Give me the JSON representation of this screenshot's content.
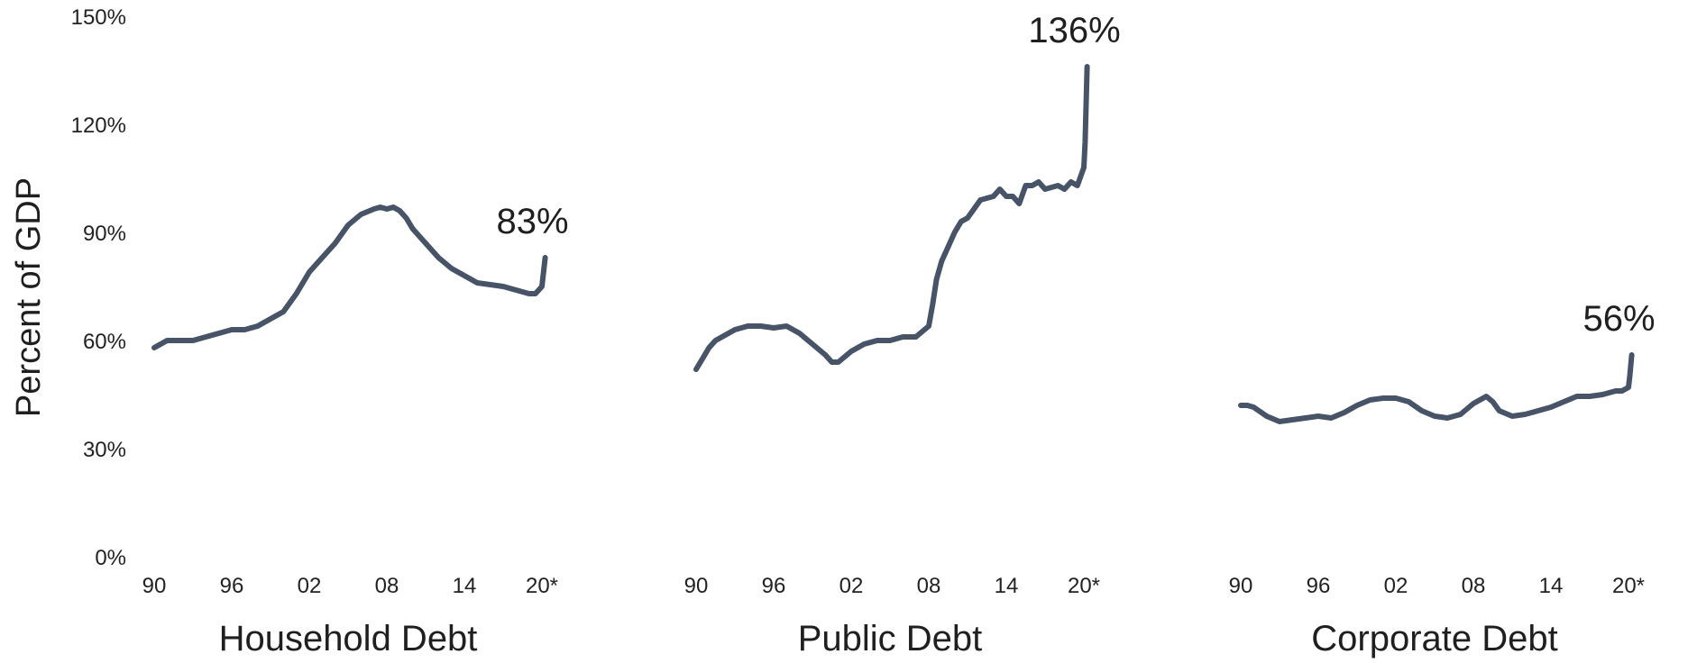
{
  "colors": {
    "line": "#475467",
    "text": "#1f1f1f",
    "background": "#ffffff"
  },
  "chart_data": {
    "type": "line",
    "ylabel": "Percent of GDP",
    "ylim": [
      0,
      150
    ],
    "yticks": [
      0,
      30,
      60,
      90,
      120,
      150
    ],
    "ytick_labels": [
      "0%",
      "30%",
      "60%",
      "90%",
      "120%",
      "150%"
    ],
    "xlim": [
      1990,
      2020.5
    ],
    "xticks": [
      1990,
      1996,
      2002,
      2008,
      2014,
      2020
    ],
    "xtick_labels": [
      "90",
      "96",
      "02",
      "08",
      "14",
      "20*"
    ],
    "grid": false,
    "legend": "none",
    "panels": [
      {
        "title": "Household Debt",
        "end_label": "83%",
        "series": [
          {
            "x": [
              1990,
              1990.5,
              1991,
              1991.5,
              1992,
              1993,
              1994,
              1995,
              1996,
              1997,
              1998,
              1999,
              2000,
              2001,
              2002,
              2003,
              2004,
              2005,
              2006,
              2007,
              2007.5,
              2008,
              2008.5,
              2009,
              2009.5,
              2010,
              2011,
              2012,
              2013,
              2014,
              2015,
              2016,
              2017,
              2018,
              2019,
              2019.5,
              2020,
              2020.25
            ],
            "values": [
              58,
              59,
              60,
              60,
              60,
              60,
              61,
              62,
              63,
              63,
              64,
              66,
              68,
              73,
              79,
              83,
              87,
              92,
              95,
              96.5,
              97,
              96.5,
              97,
              96,
              94,
              91,
              87,
              83,
              80,
              78,
              76,
              75.5,
              75,
              74,
              73,
              73,
              75,
              83
            ]
          }
        ]
      },
      {
        "title": "Public Debt",
        "end_label": "136%",
        "series": [
          {
            "x": [
              1990,
              1990.5,
              1991,
              1991.5,
              1992,
              1993,
              1994,
              1995,
              1996,
              1997,
              1998,
              1999,
              2000,
              2000.5,
              2001,
              2002,
              2003,
              2004,
              2005,
              2006,
              2007,
              2008,
              2008.3,
              2008.6,
              2009,
              2009.5,
              2010,
              2010.5,
              2011,
              2012,
              2013,
              2013.5,
              2014,
              2014.5,
              2015,
              2015.5,
              2016,
              2016.5,
              2017,
              2018,
              2018.5,
              2019,
              2019.5,
              2020,
              2020.1,
              2020.25
            ],
            "values": [
              52,
              55,
              58,
              60,
              61,
              63,
              64,
              64,
              63.5,
              64,
              62,
              59,
              56,
              54,
              54,
              57,
              59,
              60,
              60,
              61,
              61,
              64,
              70,
              77,
              82,
              86,
              90,
              93,
              94,
              99,
              100,
              102,
              100,
              100,
              98,
              103,
              103,
              104,
              102,
              103,
              102,
              104,
              103,
              108,
              115,
              136
            ]
          }
        ]
      },
      {
        "title": "Corporate Debt",
        "end_label": "56%",
        "series": [
          {
            "x": [
              1990,
              1990.5,
              1991,
              1992,
              1993,
              1994,
              1995,
              1996,
              1997,
              1998,
              1999,
              2000,
              2001,
              2002,
              2003,
              2004,
              2005,
              2006,
              2007,
              2008,
              2009,
              2009.5,
              2010,
              2011,
              2012,
              2013,
              2014,
              2015,
              2016,
              2017,
              2018,
              2019,
              2019.5,
              2020,
              2020.1,
              2020.25
            ],
            "values": [
              42,
              42,
              41.5,
              39,
              37.5,
              38,
              38.5,
              39,
              38.5,
              40,
              42,
              43.5,
              44,
              44,
              43,
              40.5,
              39,
              38.5,
              39.5,
              42.5,
              44.5,
              43,
              40.5,
              39,
              39.5,
              40.5,
              41.5,
              43,
              44.5,
              44.5,
              45,
              46,
              46,
              47,
              50,
              56
            ]
          }
        ]
      }
    ]
  }
}
